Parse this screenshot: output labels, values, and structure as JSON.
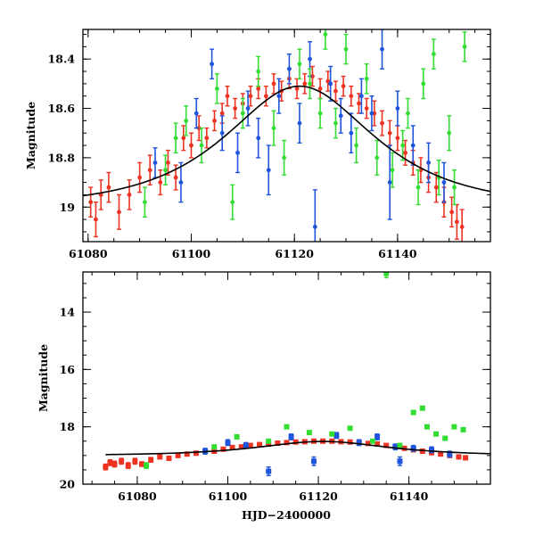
{
  "chart_data": [
    {
      "id": "top",
      "type": "scatter",
      "title": "",
      "xlabel": "",
      "ylabel": "Magnitude",
      "xlim": [
        61079,
        61158
      ],
      "ylim": [
        19.14,
        18.28
      ],
      "y_inverted": true,
      "xticks_major": [
        61080,
        61100,
        61120,
        61140
      ],
      "xtick_labels": [
        "61080",
        "61100",
        "61120",
        "61140"
      ],
      "yticks_major": [
        18.4,
        18.6,
        18.8,
        19.0
      ],
      "ytick_labels": [
        "18.4",
        "18.6",
        "18.8",
        "19"
      ],
      "model_curve": {
        "peak_x": 61121,
        "peak_mag": 18.51,
        "baseline_mag": 19.0,
        "t_e": 20
      },
      "series": [
        {
          "name": "red",
          "color": "#ee3322",
          "points": [
            [
              61080.5,
              18.98,
              0.06
            ],
            [
              61081.5,
              19.05,
              0.07
            ],
            [
              61082.5,
              18.95,
              0.06
            ],
            [
              61084,
              18.92,
              0.06
            ],
            [
              61086,
              19.02,
              0.07
            ],
            [
              61088,
              18.95,
              0.06
            ],
            [
              61090,
              18.88,
              0.06
            ],
            [
              61092,
              18.85,
              0.06
            ],
            [
              61094,
              18.9,
              0.05
            ],
            [
              61095.5,
              18.82,
              0.05
            ],
            [
              61097,
              18.88,
              0.05
            ],
            [
              61098.5,
              18.72,
              0.05
            ],
            [
              61100,
              18.75,
              0.05
            ],
            [
              61101.5,
              18.68,
              0.05
            ],
            [
              61103,
              18.72,
              0.04
            ],
            [
              61104.5,
              18.65,
              0.04
            ],
            [
              61106,
              18.62,
              0.04
            ],
            [
              61107,
              18.55,
              0.04
            ],
            [
              61108.5,
              18.6,
              0.04
            ],
            [
              61110,
              18.58,
              0.04
            ],
            [
              61111.5,
              18.55,
              0.04
            ],
            [
              61113,
              18.52,
              0.04
            ],
            [
              61114.5,
              18.55,
              0.04
            ],
            [
              61116,
              18.5,
              0.04
            ],
            [
              61117.5,
              18.53,
              0.04
            ],
            [
              61119,
              18.48,
              0.04
            ],
            [
              61120.5,
              18.52,
              0.04
            ],
            [
              61122,
              18.5,
              0.04
            ],
            [
              61123.5,
              18.47,
              0.04
            ],
            [
              61125,
              18.52,
              0.04
            ],
            [
              61126.5,
              18.49,
              0.04
            ],
            [
              61128,
              18.53,
              0.04
            ],
            [
              61129.5,
              18.51,
              0.04
            ],
            [
              61131,
              18.55,
              0.04
            ],
            [
              61132.5,
              18.58,
              0.04
            ],
            [
              61134,
              18.6,
              0.04
            ],
            [
              61135.5,
              18.62,
              0.05
            ],
            [
              61137,
              18.66,
              0.05
            ],
            [
              61138.5,
              18.7,
              0.05
            ],
            [
              61140,
              18.72,
              0.05
            ],
            [
              61141.5,
              18.78,
              0.05
            ],
            [
              61143,
              18.82,
              0.05
            ],
            [
              61144.5,
              18.85,
              0.05
            ],
            [
              61146,
              18.88,
              0.06
            ],
            [
              61147.5,
              18.92,
              0.06
            ],
            [
              61149,
              18.98,
              0.06
            ],
            [
              61150.5,
              19.02,
              0.06
            ],
            [
              61151.5,
              19.06,
              0.07
            ],
            [
              61152.5,
              19.08,
              0.07
            ]
          ]
        },
        {
          "name": "blue",
          "color": "#1f55dd",
          "points": [
            [
              61093,
              18.82,
              0.06
            ],
            [
              61098,
              18.9,
              0.08
            ],
            [
              61101,
              18.62,
              0.06
            ],
            [
              61104,
              18.42,
              0.06
            ],
            [
              61106,
              18.7,
              0.07
            ],
            [
              61109,
              18.78,
              0.08
            ],
            [
              61111,
              18.6,
              0.07
            ],
            [
              61113,
              18.72,
              0.08
            ],
            [
              61115,
              18.85,
              0.1
            ],
            [
              61117,
              18.55,
              0.07
            ],
            [
              61119,
              18.44,
              0.06
            ],
            [
              61121,
              18.66,
              0.08
            ],
            [
              61123,
              18.4,
              0.07
            ],
            [
              61124,
              19.08,
              0.15
            ],
            [
              61127,
              18.5,
              0.07
            ],
            [
              61129,
              18.63,
              0.07
            ],
            [
              61131,
              18.7,
              0.08
            ],
            [
              61133,
              18.55,
              0.07
            ],
            [
              61135,
              18.62,
              0.07
            ],
            [
              61137,
              18.36,
              0.08
            ],
            [
              61138.5,
              18.9,
              0.15
            ],
            [
              61140,
              18.6,
              0.07
            ],
            [
              61143,
              18.75,
              0.08
            ],
            [
              61146,
              18.82,
              0.08
            ],
            [
              61149,
              18.9,
              0.08
            ]
          ]
        },
        {
          "name": "green",
          "color": "#33dd33",
          "points": [
            [
              61091,
              18.98,
              0.06
            ],
            [
              61095,
              18.85,
              0.06
            ],
            [
              61097,
              18.72,
              0.06
            ],
            [
              61099,
              18.65,
              0.06
            ],
            [
              61102,
              18.75,
              0.07
            ],
            [
              61105,
              18.52,
              0.06
            ],
            [
              61108,
              18.98,
              0.07
            ],
            [
              61110,
              18.62,
              0.06
            ],
            [
              61113,
              18.45,
              0.06
            ],
            [
              61116,
              18.68,
              0.07
            ],
            [
              61118,
              18.8,
              0.07
            ],
            [
              61121,
              18.42,
              0.06
            ],
            [
              61123,
              18.5,
              0.06
            ],
            [
              61125,
              18.62,
              0.06
            ],
            [
              61126,
              18.3,
              0.06
            ],
            [
              61128,
              18.66,
              0.06
            ],
            [
              61130,
              18.36,
              0.06
            ],
            [
              61132,
              18.75,
              0.07
            ],
            [
              61134,
              18.48,
              0.06
            ],
            [
              61136,
              18.8,
              0.07
            ],
            [
              61139,
              18.85,
              0.07
            ],
            [
              61141,
              18.75,
              0.06
            ],
            [
              61142,
              18.62,
              0.06
            ],
            [
              61144,
              18.92,
              0.07
            ],
            [
              61145,
              18.5,
              0.06
            ],
            [
              61147,
              18.38,
              0.06
            ],
            [
              61148,
              18.88,
              0.07
            ],
            [
              61150,
              18.7,
              0.07
            ],
            [
              61151,
              18.92,
              0.07
            ],
            [
              61153,
              18.35,
              0.06
            ]
          ]
        }
      ]
    },
    {
      "id": "bottom",
      "type": "scatter",
      "title": "",
      "xlabel": "HJD−2400000",
      "ylabel": "Magnitude",
      "xlim": [
        61068,
        61158
      ],
      "ylim": [
        20.0,
        12.6
      ],
      "y_inverted": true,
      "xticks_major": [
        61080,
        61100,
        61120,
        61140
      ],
      "xtick_labels": [
        "61080",
        "61100",
        "61120",
        "61140"
      ],
      "yticks_major": [
        14,
        16,
        18,
        20
      ],
      "ytick_labels": [
        "14",
        "16",
        "18",
        "20"
      ],
      "model_curve": {
        "peak_x": 61121,
        "peak_mag": 18.51,
        "baseline_mag": 19.0,
        "t_e": 20
      },
      "series": [
        {
          "name": "red",
          "color": "#ee3322",
          "points": [
            [
              61073,
              19.4,
              0.1
            ],
            [
              61074,
              19.25,
              0.1
            ],
            [
              61075,
              19.3,
              0.1
            ],
            [
              61076.5,
              19.2,
              0.1
            ],
            [
              61078,
              19.35,
              0.1
            ],
            [
              61079.5,
              19.2,
              0.1
            ],
            [
              61081,
              19.3,
              0.08
            ],
            [
              61083,
              19.15,
              0.08
            ],
            [
              61085,
              19.05,
              0.06
            ],
            [
              61087,
              19.1,
              0.06
            ],
            [
              61089,
              19.0,
              0.06
            ],
            [
              61091,
              18.95,
              0.06
            ],
            [
              61093,
              18.92,
              0.06
            ],
            [
              61095,
              18.85,
              0.05
            ],
            [
              61097,
              18.85,
              0.05
            ],
            [
              61099,
              18.78,
              0.05
            ],
            [
              61101,
              18.72,
              0.05
            ],
            [
              61103,
              18.7,
              0.05
            ],
            [
              61105,
              18.65,
              0.05
            ],
            [
              61107,
              18.62,
              0.05
            ],
            [
              61109,
              18.6,
              0.05
            ],
            [
              61111,
              18.57,
              0.05
            ],
            [
              61113,
              18.55,
              0.05
            ],
            [
              61115,
              18.53,
              0.05
            ],
            [
              61117,
              18.52,
              0.05
            ],
            [
              61119,
              18.5,
              0.05
            ],
            [
              61121,
              18.5,
              0.05
            ],
            [
              61123,
              18.5,
              0.05
            ],
            [
              61125,
              18.52,
              0.05
            ],
            [
              61127,
              18.53,
              0.05
            ],
            [
              61129,
              18.55,
              0.05
            ],
            [
              61131,
              18.58,
              0.05
            ],
            [
              61133,
              18.6,
              0.05
            ],
            [
              61135,
              18.65,
              0.05
            ],
            [
              61137,
              18.7,
              0.05
            ],
            [
              61139,
              18.75,
              0.05
            ],
            [
              61141,
              18.8,
              0.05
            ],
            [
              61143,
              18.85,
              0.05
            ],
            [
              61145,
              18.9,
              0.06
            ],
            [
              61147,
              18.95,
              0.06
            ],
            [
              61149,
              19.0,
              0.06
            ],
            [
              61151,
              19.05,
              0.06
            ],
            [
              61152.5,
              19.08,
              0.07
            ]
          ]
        },
        {
          "name": "blue",
          "color": "#1f55dd",
          "points": [
            [
              61095,
              18.85,
              0.1
            ],
            [
              61100,
              18.55,
              0.1
            ],
            [
              61104,
              18.65,
              0.1
            ],
            [
              61109,
              19.55,
              0.15
            ],
            [
              61114,
              18.35,
              0.1
            ],
            [
              61119,
              19.2,
              0.15
            ],
            [
              61124,
              18.3,
              0.1
            ],
            [
              61129,
              18.55,
              0.1
            ],
            [
              61133,
              18.35,
              0.1
            ],
            [
              61137,
              18.7,
              0.1
            ],
            [
              61138,
              19.2,
              0.15
            ],
            [
              61141,
              18.75,
              0.1
            ],
            [
              61145,
              18.8,
              0.1
            ],
            [
              61149,
              18.95,
              0.1
            ]
          ]
        },
        {
          "name": "green",
          "color": "#33dd33",
          "points": [
            [
              61082,
              19.35,
              0.1
            ],
            [
              61097,
              18.7,
              0.06
            ],
            [
              61102,
              18.35,
              0.06
            ],
            [
              61109,
              18.5,
              0.06
            ],
            [
              61113,
              18.0,
              0.06
            ],
            [
              61118,
              18.2,
              0.06
            ],
            [
              61123,
              18.25,
              0.06
            ],
            [
              61127,
              18.05,
              0.06
            ],
            [
              61132,
              18.5,
              0.06
            ],
            [
              61135,
              12.65,
              0.15
            ],
            [
              61138,
              18.65,
              0.06
            ],
            [
              61141,
              17.5,
              0.06
            ],
            [
              61143,
              17.35,
              0.06
            ],
            [
              61144,
              18.0,
              0.06
            ],
            [
              61146,
              18.25,
              0.06
            ],
            [
              61148,
              18.4,
              0.06
            ],
            [
              61150,
              18.0,
              0.06
            ],
            [
              61152,
              18.1,
              0.06
            ]
          ]
        }
      ]
    }
  ]
}
